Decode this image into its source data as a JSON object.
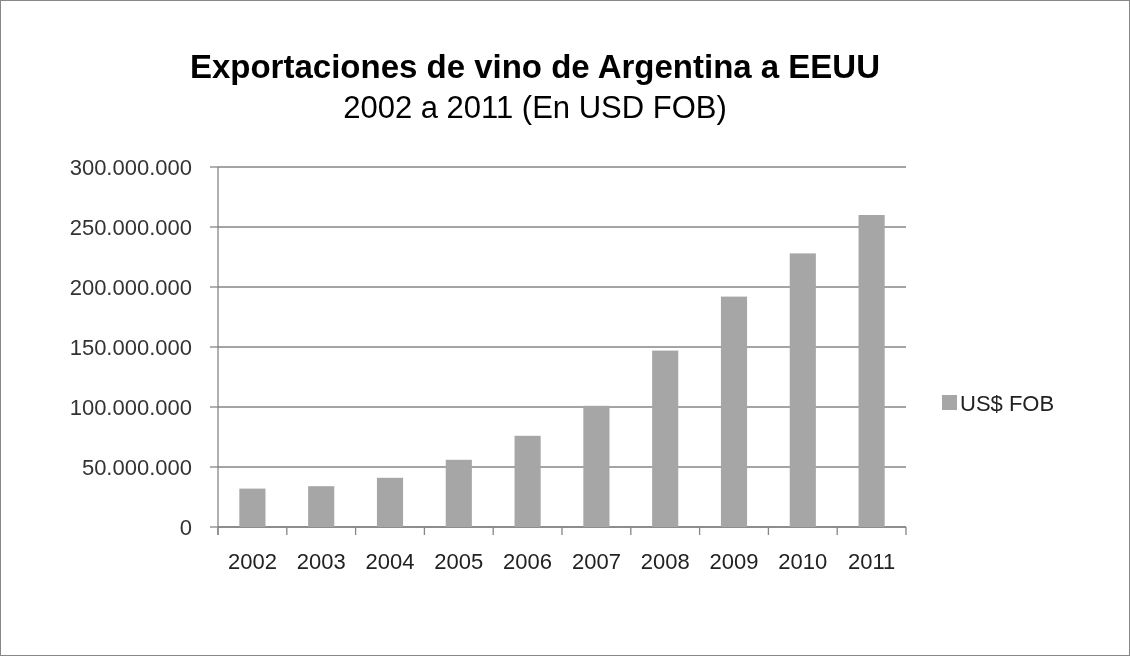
{
  "chart_data": {
    "type": "bar",
    "title": "Exportaciones de vino de Argentina a EEUU",
    "subtitle": "2002 a 2011 (En USD FOB)",
    "categories": [
      "2002",
      "2003",
      "2004",
      "2005",
      "2006",
      "2007",
      "2008",
      "2009",
      "2010",
      "2011"
    ],
    "series": [
      {
        "name": "US$ FOB",
        "color": "#a6a6a6",
        "values": [
          32000000,
          34000000,
          41000000,
          56000000,
          76000000,
          101000000,
          147000000,
          192000000,
          228000000,
          260000000
        ]
      }
    ],
    "ylim": [
      0,
      300000000
    ],
    "yticks": [
      {
        "value": 0,
        "label": "0"
      },
      {
        "value": 50000000,
        "label": "50.000.000"
      },
      {
        "value": 100000000,
        "label": "100.000.000"
      },
      {
        "value": 150000000,
        "label": "150.000.000"
      },
      {
        "value": 200000000,
        "label": "200.000.000"
      },
      {
        "value": 250000000,
        "label": "250.000.000"
      },
      {
        "value": 300000000,
        "label": "300.000.000"
      }
    ],
    "grid": "y",
    "legend": "right"
  }
}
